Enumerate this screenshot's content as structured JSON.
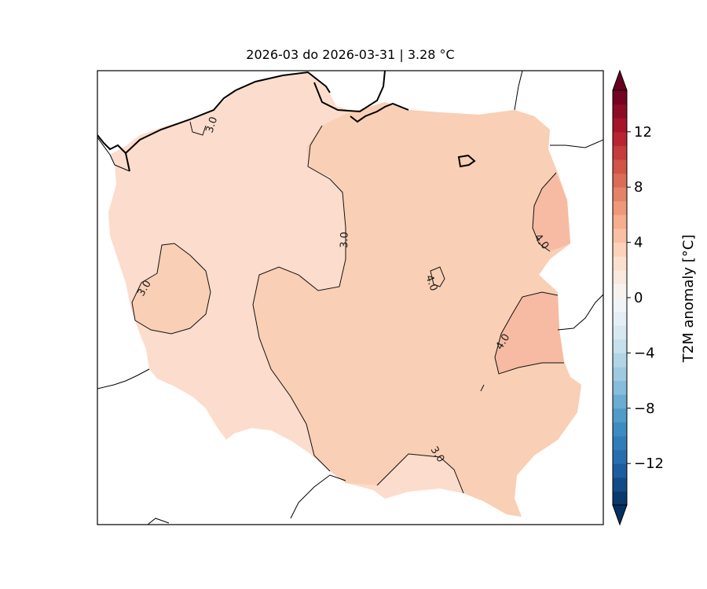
{
  "title": "2026-03 do 2026-03-31 | 3.28 °C",
  "map": {
    "region": "Poland",
    "fill_colors": {
      "level_3_4": "#fcdccc",
      "level_4_5": "#f9cfb5",
      "level_5_6": "#f6bba2"
    },
    "contour_labels": [
      "3.0",
      "3.0",
      "3.0",
      "3.0",
      "4.0",
      "4.0",
      "4.0"
    ]
  },
  "colorbar": {
    "label": "T2M anomaly [°C]",
    "ticks": [
      "12",
      "8",
      "4",
      "0",
      "−4",
      "−8",
      "−12"
    ],
    "tick_values": [
      12,
      8,
      4,
      0,
      -4,
      -8,
      -12
    ],
    "range": [
      -15,
      15
    ],
    "levels": 30,
    "colormap": "RdBu_r",
    "extend": "both"
  }
}
